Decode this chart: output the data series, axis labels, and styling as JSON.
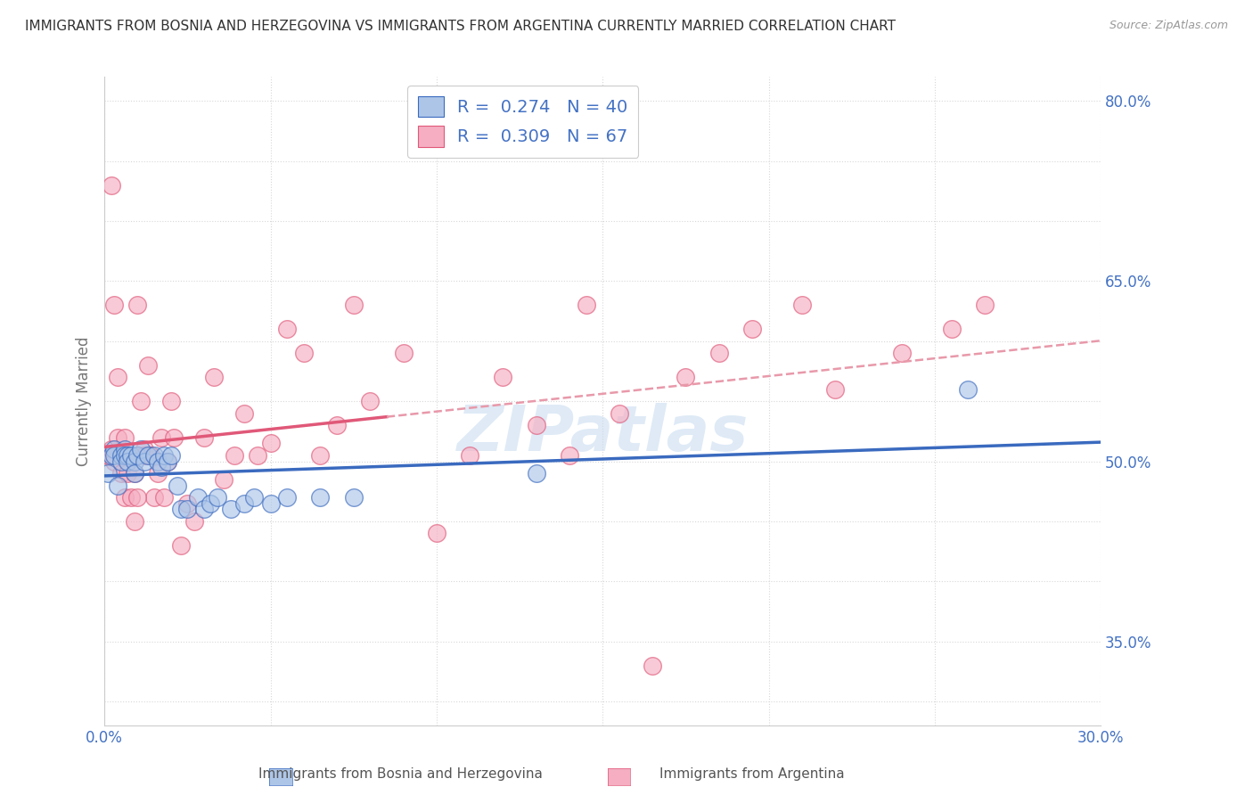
{
  "title": "IMMIGRANTS FROM BOSNIA AND HERZEGOVINA VS IMMIGRANTS FROM ARGENTINA CURRENTLY MARRIED CORRELATION CHART",
  "source": "Source: ZipAtlas.com",
  "ylabel": "Currently Married",
  "xlim": [
    0.0,
    0.3
  ],
  "ylim": [
    0.28,
    0.82
  ],
  "x_tick_pos": [
    0.0,
    0.05,
    0.1,
    0.15,
    0.2,
    0.25,
    0.3
  ],
  "x_tick_labels": [
    "0.0%",
    "",
    "",
    "",
    "",
    "",
    "30.0%"
  ],
  "y_tick_pos": [
    0.3,
    0.35,
    0.4,
    0.45,
    0.5,
    0.55,
    0.6,
    0.65,
    0.7,
    0.75,
    0.8
  ],
  "y_tick_labels": [
    "",
    "35.0%",
    "",
    "",
    "50.0%",
    "",
    "",
    "65.0%",
    "",
    "",
    "80.0%"
  ],
  "bosnia_R": 0.274,
  "bosnia_N": 40,
  "argentina_R": 0.309,
  "argentina_N": 67,
  "bosnia_color": "#adc6e8",
  "argentina_color": "#f5aec2",
  "bosnia_line_color": "#3a6abf",
  "argentina_line_color": "#e05878",
  "dashed_line_color": "#e899aa",
  "legend_bosnia_label": "R =  0.274   N = 40",
  "legend_argentina_label": "R =  0.309   N = 67",
  "footer_bosnia": "Immigrants from Bosnia and Herzegovina",
  "footer_argentina": "Immigrants from Argentina",
  "watermark": "ZIPatlas",
  "background_color": "#ffffff",
  "grid_color": "#d8d8d8",
  "bosnia_x": [
    0.001,
    0.002,
    0.003,
    0.003,
    0.004,
    0.005,
    0.005,
    0.006,
    0.006,
    0.007,
    0.007,
    0.008,
    0.009,
    0.009,
    0.01,
    0.011,
    0.012,
    0.013,
    0.015,
    0.016,
    0.017,
    0.018,
    0.019,
    0.02,
    0.022,
    0.023,
    0.025,
    0.028,
    0.03,
    0.032,
    0.034,
    0.038,
    0.042,
    0.045,
    0.05,
    0.055,
    0.065,
    0.075,
    0.13,
    0.26
  ],
  "bosnia_y": [
    0.49,
    0.505,
    0.51,
    0.505,
    0.48,
    0.505,
    0.5,
    0.51,
    0.505,
    0.505,
    0.5,
    0.505,
    0.5,
    0.49,
    0.505,
    0.51,
    0.5,
    0.505,
    0.505,
    0.5,
    0.495,
    0.505,
    0.5,
    0.505,
    0.48,
    0.46,
    0.46,
    0.47,
    0.46,
    0.465,
    0.47,
    0.46,
    0.465,
    0.47,
    0.465,
    0.47,
    0.47,
    0.47,
    0.49,
    0.56
  ],
  "argentina_x": [
    0.001,
    0.002,
    0.002,
    0.003,
    0.003,
    0.004,
    0.004,
    0.005,
    0.005,
    0.006,
    0.006,
    0.007,
    0.007,
    0.008,
    0.009,
    0.009,
    0.01,
    0.011,
    0.012,
    0.013,
    0.014,
    0.015,
    0.016,
    0.017,
    0.018,
    0.019,
    0.02,
    0.021,
    0.023,
    0.025,
    0.027,
    0.03,
    0.033,
    0.036,
    0.039,
    0.042,
    0.046,
    0.05,
    0.055,
    0.06,
    0.065,
    0.07,
    0.075,
    0.08,
    0.09,
    0.1,
    0.11,
    0.12,
    0.13,
    0.14,
    0.145,
    0.155,
    0.165,
    0.175,
    0.185,
    0.195,
    0.21,
    0.22,
    0.24,
    0.255,
    0.265,
    0.005,
    0.006,
    0.008,
    0.01,
    0.012,
    0.014
  ],
  "argentina_y": [
    0.505,
    0.51,
    0.73,
    0.5,
    0.63,
    0.57,
    0.52,
    0.505,
    0.49,
    0.47,
    0.52,
    0.505,
    0.49,
    0.505,
    0.49,
    0.45,
    0.63,
    0.55,
    0.51,
    0.58,
    0.505,
    0.47,
    0.49,
    0.52,
    0.47,
    0.5,
    0.55,
    0.52,
    0.43,
    0.465,
    0.45,
    0.52,
    0.57,
    0.485,
    0.505,
    0.54,
    0.505,
    0.515,
    0.61,
    0.59,
    0.505,
    0.53,
    0.63,
    0.55,
    0.59,
    0.44,
    0.505,
    0.57,
    0.53,
    0.505,
    0.63,
    0.54,
    0.33,
    0.57,
    0.59,
    0.61,
    0.63,
    0.56,
    0.59,
    0.61,
    0.63,
    0.505,
    0.505,
    0.47,
    0.47,
    0.505,
    0.505
  ]
}
